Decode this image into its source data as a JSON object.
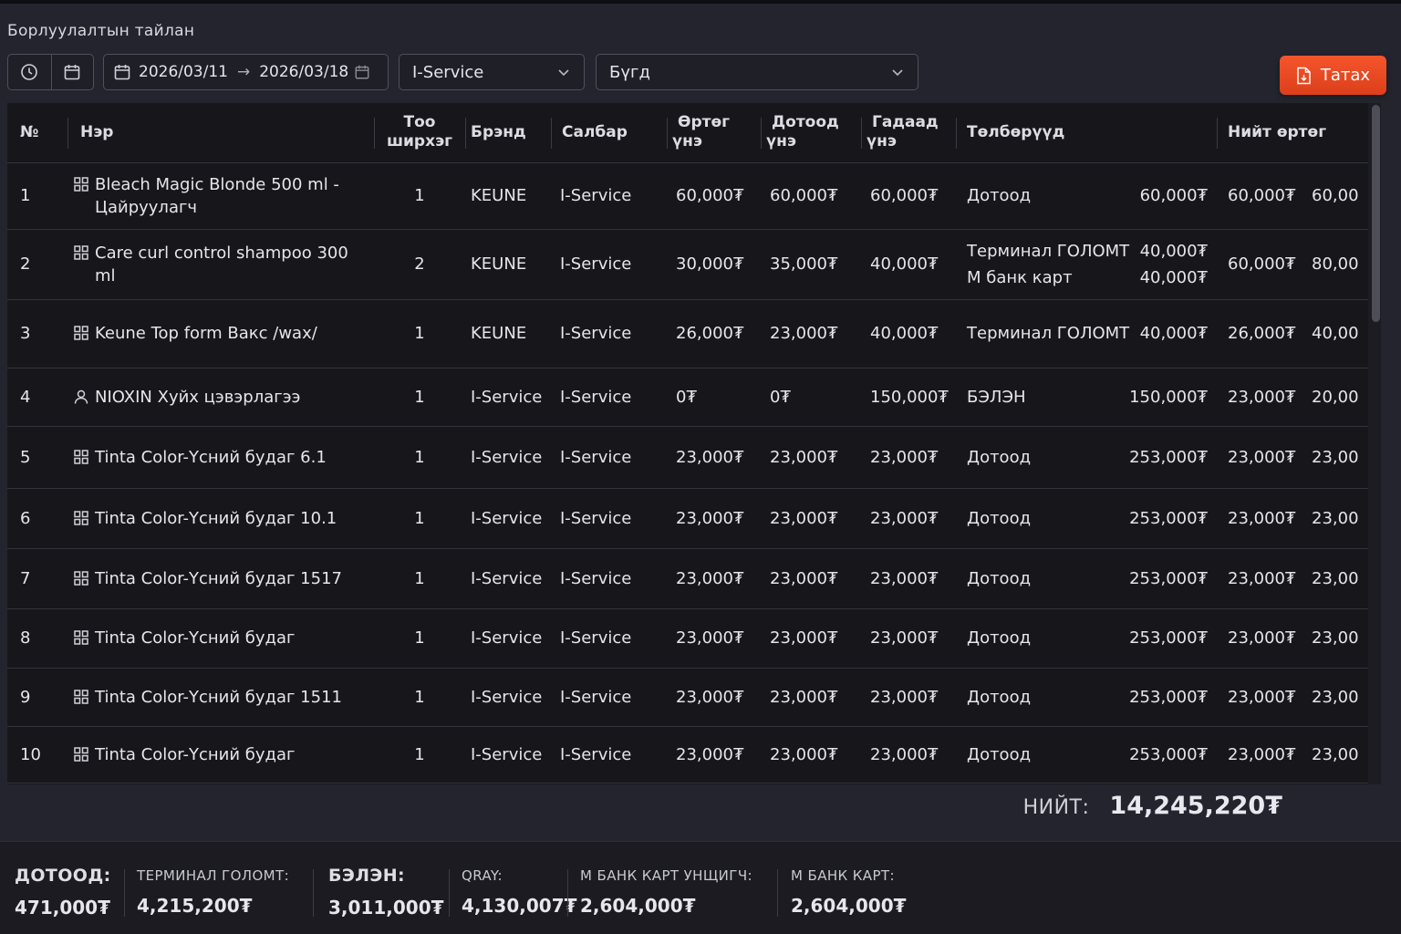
{
  "page": {
    "title": "Борлуулалтын тайлан"
  },
  "toolbar": {
    "date_from": "2026/03/11",
    "date_arrow": "→",
    "date_to": "2026/03/18",
    "branch_select": "I-Service",
    "filter_select": "Бүгд",
    "export_label": "Татах"
  },
  "table": {
    "headers": {
      "no": "№",
      "name": "Нэр",
      "qty": "Тоо ширхэг",
      "brand": "Брэнд",
      "branch": "Салбар",
      "cost": "Өртөг үнэ",
      "internal": "Дотоод үнэ",
      "external": "Гадаад үнэ",
      "payments": "Төлбөрүүд",
      "total_cost": "Нийт өртөг"
    },
    "rows": [
      {
        "no": "1",
        "icon": "grid",
        "name": "Bleach Magic Blonde 500 ml - Цайруулагч",
        "qty": "1",
        "brand": "KEUNE",
        "branch": "I-Service",
        "cost": "60,000₮",
        "internal": "60,000₮",
        "external": "60,000₮",
        "payments": [
          {
            "method": "Дотоод",
            "amount": "60,000₮"
          }
        ],
        "total_cost": "60,000₮",
        "last": "60,00"
      },
      {
        "no": "2",
        "icon": "grid",
        "name": "Care curl control shampoo 300 ml",
        "qty": "2",
        "brand": "KEUNE",
        "branch": "I-Service",
        "cost": "30,000₮",
        "internal": "35,000₮",
        "external": "40,000₮",
        "payments": [
          {
            "method": "Терминал ГОЛОМТ",
            "amount": "40,000₮"
          },
          {
            "method": "М банк карт",
            "amount": "40,000₮"
          }
        ],
        "total_cost": "60,000₮",
        "last": "80,00"
      },
      {
        "no": "3",
        "icon": "grid",
        "name": "Keune Top form Вакс /wax/",
        "qty": "1",
        "brand": "KEUNE",
        "branch": "I-Service",
        "cost": "26,000₮",
        "internal": "23,000₮",
        "external": "40,000₮",
        "payments": [
          {
            "method": "Терминал ГОЛОМТ",
            "amount": "40,000₮"
          }
        ],
        "total_cost": "26,000₮",
        "last": "40,00"
      },
      {
        "no": "4",
        "icon": "person",
        "name": "NIOXIN Хуйх цэвэрлагээ",
        "qty": "1",
        "brand": "I-Service",
        "branch": "I-Service",
        "cost": "0₮",
        "internal": "0₮",
        "external": "150,000₮",
        "payments": [
          {
            "method": "БЭЛЭН",
            "amount": "150,000₮"
          }
        ],
        "total_cost": "23,000₮",
        "last": "20,00"
      },
      {
        "no": "5",
        "icon": "grid",
        "name": "Tinta Color-Үсний будаг 6.1",
        "qty": "1",
        "brand": "I-Service",
        "branch": "I-Service",
        "cost": "23,000₮",
        "internal": "23,000₮",
        "external": "23,000₮",
        "payments": [
          {
            "method": "Дотоод",
            "amount": "253,000₮"
          }
        ],
        "total_cost": "23,000₮",
        "last": "23,00"
      },
      {
        "no": "6",
        "icon": "grid",
        "name": "Tinta Color-Үсний будаг 10.1",
        "qty": "1",
        "brand": "I-Service",
        "branch": "I-Service",
        "cost": "23,000₮",
        "internal": "23,000₮",
        "external": "23,000₮",
        "payments": [
          {
            "method": "Дотоод",
            "amount": "253,000₮"
          }
        ],
        "total_cost": "23,000₮",
        "last": "23,00"
      },
      {
        "no": "7",
        "icon": "grid",
        "name": "Tinta Color-Үсний будаг 1517",
        "qty": "1",
        "brand": "I-Service",
        "branch": "I-Service",
        "cost": "23,000₮",
        "internal": "23,000₮",
        "external": "23,000₮",
        "payments": [
          {
            "method": "Дотоод",
            "amount": "253,000₮"
          }
        ],
        "total_cost": "23,000₮",
        "last": "23,00"
      },
      {
        "no": "8",
        "icon": "grid",
        "name": "Tinta Color-Үсний будаг",
        "qty": "1",
        "brand": "I-Service",
        "branch": "I-Service",
        "cost": "23,000₮",
        "internal": "23,000₮",
        "external": "23,000₮",
        "payments": [
          {
            "method": "Дотоод",
            "amount": "253,000₮"
          }
        ],
        "total_cost": "23,000₮",
        "last": "23,00"
      },
      {
        "no": "9",
        "icon": "grid",
        "name": "Tinta Color-Үсний будаг 1511",
        "qty": "1",
        "brand": "I-Service",
        "branch": "I-Service",
        "cost": "23,000₮",
        "internal": "23,000₮",
        "external": "23,000₮",
        "payments": [
          {
            "method": "Дотоод",
            "amount": "253,000₮"
          }
        ],
        "total_cost": "23,000₮",
        "last": "23,00"
      },
      {
        "no": "10",
        "icon": "grid",
        "name": "Tinta Color-Үсний будаг",
        "qty": "1",
        "brand": "I-Service",
        "branch": "I-Service",
        "cost": "23,000₮",
        "internal": "23,000₮",
        "external": "23,000₮",
        "payments": [
          {
            "method": "Дотоод",
            "amount": "253,000₮"
          }
        ],
        "total_cost": "23,000₮",
        "last": "23,00"
      }
    ]
  },
  "totals": {
    "label": "НИЙТ:",
    "value": "14,245,220₮"
  },
  "summary": [
    {
      "label": "ДОТООД:",
      "value": "471,000₮",
      "big": true
    },
    {
      "label": "ТЕРМИНАЛ ГОЛОМТ:",
      "value": "4,215,200₮",
      "big": false
    },
    {
      "label": "БЭЛЭН:",
      "value": "3,011,000₮",
      "big": true
    },
    {
      "label": "QRAY:",
      "value": "4,130,007₮",
      "big": false
    },
    {
      "label": "М БАНК КАРТ УНЩИГЧ:",
      "value": "2,604,000₮",
      "big": false
    },
    {
      "label": "М БАНК КАРТ:",
      "value": "2,604,000₮",
      "big": false
    }
  ],
  "colors": {
    "accent": "#e8471f",
    "background": "#24242e",
    "table_bg": "#17171b"
  },
  "icons": {
    "history": "clock-icon",
    "calendar": "calendar-icon",
    "export": "file-export-icon",
    "dropdown": "chevron-down-icon",
    "product": "grid-icon",
    "service": "person-icon"
  }
}
